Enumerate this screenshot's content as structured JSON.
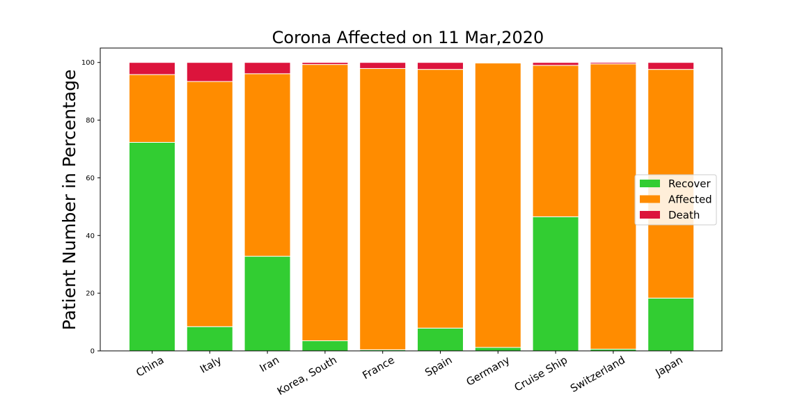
{
  "chart_data": {
    "type": "bar",
    "stacked": true,
    "title": "Corona Affected on 11 Mar,2020",
    "xlabel": "",
    "ylabel": "Patient Number in Percentage",
    "ylim": [
      0,
      105
    ],
    "yticks": [
      0,
      20,
      40,
      60,
      80,
      100
    ],
    "grid": false,
    "legend_position": "center-right",
    "categories": [
      "China",
      "Italy",
      "Iran",
      "Korea, South",
      "France",
      "Spain",
      "Germany",
      "Cruise Ship",
      "Switzerland",
      "Japan"
    ],
    "series": [
      {
        "name": "Recover",
        "color": "#32cd32",
        "values": [
          72.3,
          8.4,
          32.8,
          3.5,
          0.4,
          7.9,
          1.2,
          46.5,
          0.6,
          18.3
        ]
      },
      {
        "name": "Affected",
        "color": "#ff8c00",
        "values": [
          23.5,
          85.0,
          63.3,
          95.8,
          97.5,
          89.7,
          98.6,
          52.5,
          98.9,
          79.3
        ]
      },
      {
        "name": "Death",
        "color": "#dc143c",
        "values": [
          4.2,
          6.6,
          3.9,
          0.7,
          2.1,
          2.4,
          0.2,
          1.0,
          0.5,
          2.4
        ]
      }
    ]
  }
}
